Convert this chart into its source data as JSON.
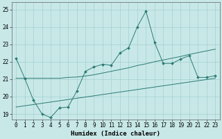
{
  "bg_color": "#c8e8e8",
  "line_color": "#2a7a72",
  "grid_color": "#9cc8c8",
  "xlim": [
    -0.5,
    23.5
  ],
  "ylim": [
    18.7,
    25.4
  ],
  "xlabel": "Humidex (Indice chaleur)",
  "yticks": [
    19,
    20,
    21,
    22,
    23,
    24,
    25
  ],
  "xticks": [
    0,
    1,
    2,
    3,
    4,
    5,
    6,
    7,
    8,
    9,
    10,
    11,
    12,
    13,
    14,
    15,
    16,
    17,
    18,
    19,
    20,
    21,
    22,
    23
  ],
  "series1_x": [
    0,
    1,
    2,
    3,
    4,
    5,
    6,
    7,
    8,
    9,
    10,
    11,
    12,
    13,
    14,
    15,
    16,
    17,
    18,
    19,
    20,
    21,
    22,
    23
  ],
  "series1_y": [
    22.2,
    21.05,
    19.8,
    19.0,
    18.8,
    19.35,
    19.4,
    20.3,
    21.45,
    21.7,
    21.85,
    21.8,
    22.5,
    22.8,
    24.0,
    24.9,
    23.1,
    21.9,
    21.9,
    22.15,
    22.35,
    21.1,
    21.1,
    21.2
  ],
  "series2_x": [
    0,
    1,
    2,
    3,
    4,
    5,
    6,
    7,
    8,
    9,
    10,
    11,
    12,
    13,
    14,
    15,
    16,
    17,
    18,
    19,
    20,
    21,
    22,
    23
  ],
  "series2_y": [
    21.05,
    21.05,
    21.05,
    21.05,
    21.05,
    21.05,
    21.1,
    21.12,
    21.18,
    21.25,
    21.35,
    21.45,
    21.55,
    21.65,
    21.78,
    21.88,
    22.0,
    22.1,
    22.2,
    22.3,
    22.42,
    22.52,
    22.62,
    22.72
  ],
  "series3_x": [
    0,
    23
  ],
  "series3_y": [
    19.4,
    21.05
  ],
  "tick_fontsize": 5.5,
  "label_fontsize": 6.5
}
